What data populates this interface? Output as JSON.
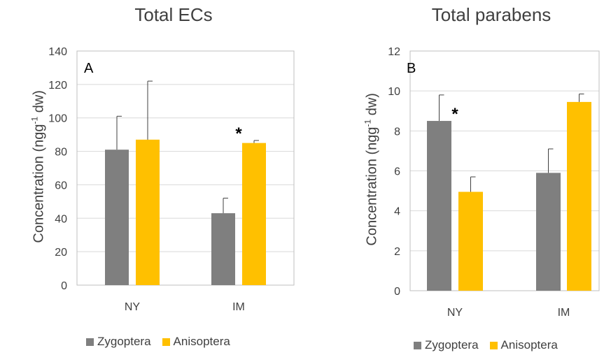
{
  "colors": {
    "zygoptera": "#7f7f7f",
    "anisoptera": "#ffc000",
    "grid": "#d9d9d9",
    "axis": "#bfbfbf"
  },
  "chart_data": [
    {
      "type": "bar",
      "title": "Total ECs",
      "panel_letter": "A",
      "ylabel_main": "Concentration (ngg",
      "ylabel_sup": "-1",
      "ylabel_tail": " dw)",
      "categories": [
        "NY",
        "IM"
      ],
      "ylim": [
        0,
        140
      ],
      "yticks": [
        0,
        20,
        40,
        60,
        80,
        100,
        120,
        140
      ],
      "series": [
        {
          "name": "Zygoptera",
          "values": [
            81,
            43
          ],
          "errors": [
            20,
            9
          ]
        },
        {
          "name": "Anisoptera",
          "values": [
            87,
            85
          ],
          "errors": [
            35,
            1.5
          ]
        }
      ],
      "annotations": [
        {
          "text": "*",
          "category": "IM"
        }
      ],
      "legend": "bottom",
      "grid": true
    },
    {
      "type": "bar",
      "title": "Total parabens",
      "panel_letter": "B",
      "ylabel_main": "Concentration (ngg",
      "ylabel_sup": "-1",
      "ylabel_tail": " dw)",
      "categories": [
        "NY",
        "IM"
      ],
      "ylim": [
        0,
        12
      ],
      "yticks": [
        0,
        2,
        4,
        6,
        8,
        10,
        12
      ],
      "series": [
        {
          "name": "Zygoptera",
          "values": [
            8.5,
            5.9
          ],
          "errors": [
            1.3,
            1.2
          ]
        },
        {
          "name": "Anisoptera",
          "values": [
            4.95,
            9.45
          ],
          "errors": [
            0.75,
            0.4
          ]
        }
      ],
      "annotations": [
        {
          "text": "*",
          "category": "NY"
        }
      ],
      "legend": "bottom",
      "grid": true
    }
  ]
}
